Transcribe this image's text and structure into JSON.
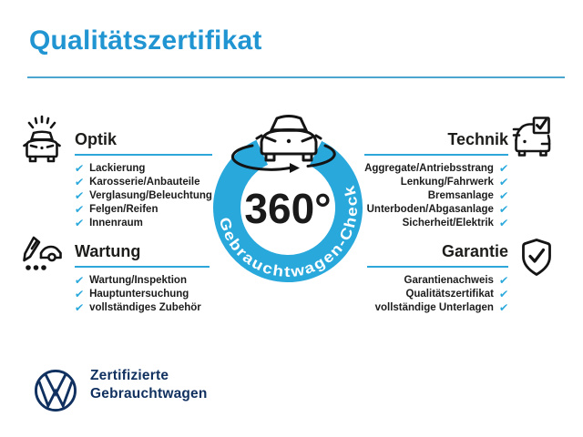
{
  "title": "Qualitätszertifikat",
  "colors": {
    "title_blue": "#2095d2",
    "brand_cyan": "#29a8dc",
    "rule_blue": "#2da7d9",
    "navy": "#10305f",
    "text_dark": "#1c1c1c",
    "icon_black": "#141414",
    "white": "#ffffff"
  },
  "checkmark": "✔",
  "center_badge": {
    "value": "360°",
    "ring_label": "Gebrauchtwagen-Check",
    "icon": "car-rotation-360-icon"
  },
  "sections": [
    {
      "id": "optik",
      "title": "Optik",
      "icon": "car-shine-icon",
      "side": "left",
      "items": [
        "Lackierung",
        "Karosserie/Anbauteile",
        "Verglasung/Beleuchtung",
        "Felgen/Reifen",
        "Innenraum"
      ]
    },
    {
      "id": "wartung",
      "title": "Wartung",
      "icon": "service-checklist-icon",
      "side": "left",
      "items": [
        "Wartung/Inspektion",
        "Hauptuntersuchung",
        "vollständiges Zubehör"
      ]
    },
    {
      "id": "technik",
      "title": "Technik",
      "icon": "car-checkbox-icon",
      "side": "right",
      "items": [
        "Aggregate/Antriebsstrang",
        "Lenkung/Fahrwerk",
        "Bremsanlage",
        "Unterboden/Abgasanlage",
        "Sicherheit/Elektrik"
      ]
    },
    {
      "id": "garantie",
      "title": "Garantie",
      "icon": "shield-check-icon",
      "side": "right",
      "items": [
        "Garantienachweis",
        "Qualitätszertifikat",
        "vollständige Unterlagen"
      ]
    }
  ],
  "footer": {
    "logo": "vw-logo",
    "line1": "Zertifizierte",
    "line2": "Gebrauchtwagen"
  }
}
